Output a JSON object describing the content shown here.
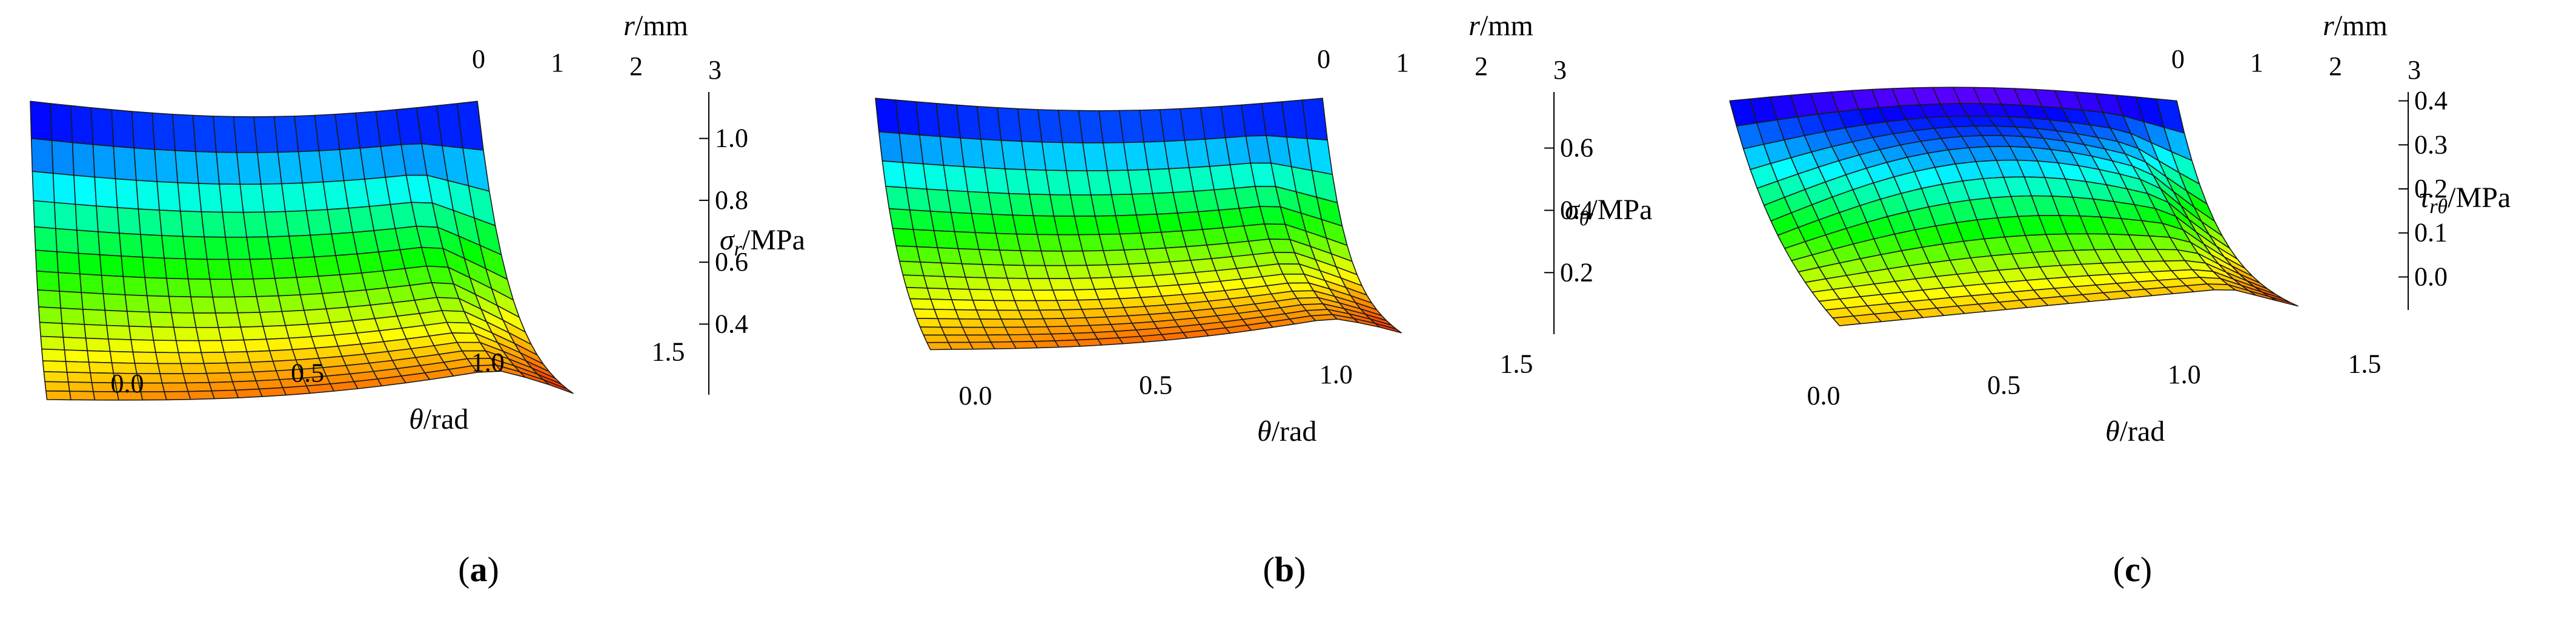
{
  "figure": {
    "panels": [
      {
        "id": "a",
        "label_open": "(",
        "label_letter": "a",
        "label_close": ")"
      },
      {
        "id": "b",
        "label_open": "(",
        "label_letter": "b",
        "label_close": ")"
      },
      {
        "id": "c",
        "label_open": "(",
        "label_letter": "c",
        "label_close": ")"
      }
    ]
  },
  "chart_data": [
    {
      "type": "surface3d",
      "panel": "a",
      "x_axis": {
        "label_var": "θ",
        "label_unit": "/rad",
        "range": [
          0,
          1.5708
        ],
        "ticks": [
          "0.0",
          "0.5",
          "1.0",
          "1.5"
        ]
      },
      "y_axis": {
        "label_var": "r",
        "label_unit": "/mm",
        "range": [
          0,
          3
        ],
        "ticks": [
          "0",
          "1",
          "2",
          "3"
        ]
      },
      "z_axis": {
        "label_var": "σ",
        "label_sub": "r",
        "label_unit": "/MPa",
        "range": [
          0.25,
          1.15
        ],
        "ticks": [
          "0.4",
          "0.6",
          "0.8",
          "1.0"
        ]
      },
      "surface": {
        "high_edge": 1.12,
        "low_edge": 0.3,
        "corner_low": 0.27,
        "theta_dip": 0.05,
        "hump": 0.0,
        "decay": 2.2
      },
      "colormap": "hue (red → yellow → green → cyan → blue → magenta)"
    },
    {
      "type": "surface3d",
      "panel": "b",
      "x_axis": {
        "label_var": "θ",
        "label_unit": "/rad",
        "range": [
          0,
          1.5708
        ],
        "ticks": [
          "0.0",
          "0.5",
          "1.0",
          "1.5"
        ]
      },
      "y_axis": {
        "label_var": "r",
        "label_unit": "/mm",
        "range": [
          0,
          3
        ],
        "ticks": [
          "0",
          "1",
          "2",
          "3"
        ]
      },
      "z_axis": {
        "label_var": "σ",
        "label_sub": "θ",
        "label_unit": "/MPa",
        "range": [
          0.08,
          0.78
        ],
        "ticks": [
          "0.2",
          "0.4",
          "0.6"
        ]
      },
      "surface": {
        "high_edge": 0.76,
        "low_edge": 0.14,
        "corner_low": 0.1,
        "theta_dip": 0.04,
        "hump": 0.0,
        "decay": 2.6
      },
      "colormap": "hue (red → yellow → green → cyan → blue → magenta)"
    },
    {
      "type": "surface3d",
      "panel": "c",
      "x_axis": {
        "label_var": "θ",
        "label_unit": "/rad",
        "range": [
          0,
          1.5708
        ],
        "ticks": [
          "0.0",
          "0.5",
          "1.0",
          "1.5"
        ]
      },
      "y_axis": {
        "label_var": "r",
        "label_unit": "/mm",
        "range": [
          0,
          3
        ],
        "ticks": [
          "0",
          "1",
          "2",
          "3"
        ]
      },
      "z_axis": {
        "label_var": "τ",
        "label_sub": "rθ",
        "label_unit": "/MPa",
        "range": [
          -0.02,
          0.42
        ],
        "ticks": [
          "0.0",
          "0.1",
          "0.2",
          "0.3",
          "0.4"
        ]
      },
      "surface": {
        "high_edge": 0.4,
        "low_edge": 0.0,
        "corner_low": 0.0,
        "theta_dip": 0.0,
        "hump": 0.12,
        "decay": 2.0
      },
      "colormap": "hue (red → yellow → green → cyan → blue → magenta)"
    }
  ]
}
